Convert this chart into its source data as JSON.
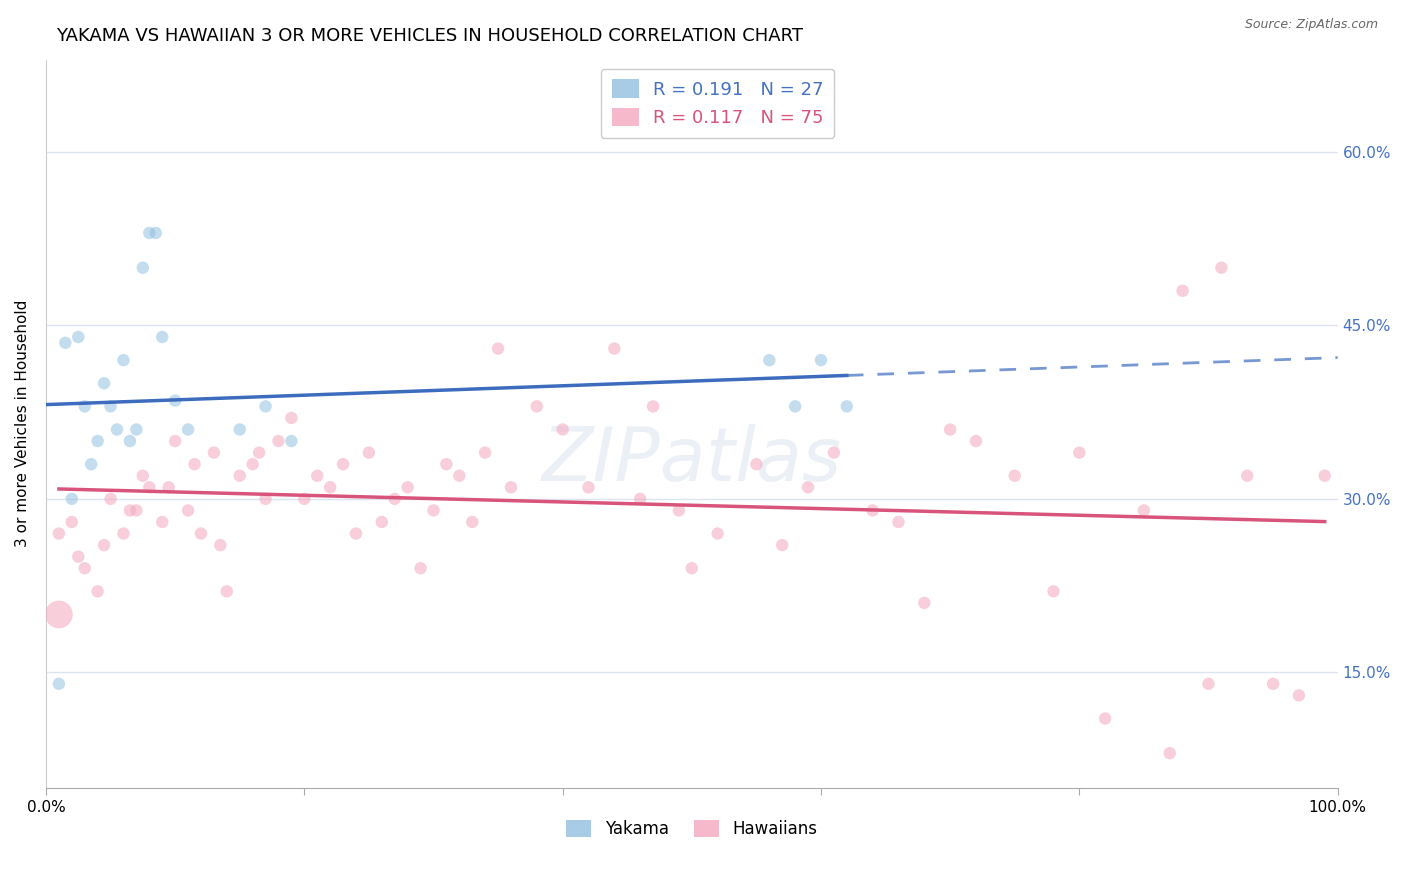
{
  "title": "YAKAMA VS HAWAIIAN 3 OR MORE VEHICLES IN HOUSEHOLD CORRELATION CHART",
  "source": "Source: ZipAtlas.com",
  "ylabel": "3 or more Vehicles in Household",
  "xlim": [
    0,
    100
  ],
  "ylim": [
    5,
    68
  ],
  "y_ticks": [
    15,
    30,
    45,
    60
  ],
  "yakama_color": "#92c0e0",
  "hawaiians_color": "#f4a6bf",
  "blue_line_color": "#3d6cbf",
  "pink_line_color": "#d9547a",
  "grid_color": "#dde4f0",
  "background_color": "#ffffff",
  "title_fontsize": 13,
  "axis_label_fontsize": 11,
  "tick_fontsize": 11,
  "watermark_text": "ZIPatlas",
  "watermark_color": "#c8d4e8",
  "watermark_alpha": 0.35,
  "yakama_x": [
    1.0,
    1.5,
    2.0,
    2.5,
    3.0,
    3.5,
    4.0,
    4.5,
    5.0,
    5.5,
    6.0,
    6.5,
    7.0,
    7.5,
    8.0,
    8.5,
    9.0,
    10.0,
    11.0,
    15.0,
    17.0,
    19.0,
    56.0,
    58.0,
    60.0,
    62.0
  ],
  "yakama_y": [
    14.0,
    43.5,
    30.0,
    44.0,
    38.0,
    33.0,
    35.0,
    40.0,
    38.0,
    36.0,
    42.0,
    35.0,
    36.0,
    50.0,
    53.0,
    53.0,
    44.0,
    38.5,
    36.0,
    36.0,
    38.0,
    35.0,
    42.0,
    38.0,
    42.0,
    38.0
  ],
  "hawaiians_x": [
    1.0,
    2.0,
    2.5,
    3.0,
    4.0,
    4.5,
    5.0,
    6.0,
    6.5,
    7.0,
    7.5,
    8.0,
    9.0,
    9.5,
    10.0,
    11.0,
    11.5,
    12.0,
    13.0,
    13.5,
    14.0,
    15.0,
    16.0,
    16.5,
    17.0,
    18.0,
    19.0,
    20.0,
    21.0,
    22.0,
    23.0,
    24.0,
    25.0,
    26.0,
    27.0,
    28.0,
    29.0,
    30.0,
    31.0,
    32.0,
    33.0,
    34.0,
    35.0,
    36.0,
    38.0,
    40.0,
    42.0,
    44.0,
    46.0,
    47.0,
    49.0,
    50.0,
    52.0,
    55.0,
    57.0,
    59.0,
    61.0,
    64.0,
    66.0,
    68.0,
    70.0,
    72.0,
    75.0,
    78.0,
    80.0,
    82.0,
    85.0,
    87.0,
    88.0,
    90.0,
    91.0,
    93.0,
    95.0,
    97.0,
    99.0
  ],
  "hawaiians_y": [
    27.0,
    28.0,
    25.0,
    24.0,
    22.0,
    26.0,
    30.0,
    27.0,
    29.0,
    29.0,
    32.0,
    31.0,
    28.0,
    31.0,
    35.0,
    29.0,
    33.0,
    27.0,
    34.0,
    26.0,
    22.0,
    32.0,
    33.0,
    34.0,
    30.0,
    35.0,
    37.0,
    30.0,
    32.0,
    31.0,
    33.0,
    27.0,
    34.0,
    28.0,
    30.0,
    31.0,
    24.0,
    29.0,
    33.0,
    32.0,
    28.0,
    34.0,
    43.0,
    31.0,
    38.0,
    36.0,
    31.0,
    43.0,
    30.0,
    38.0,
    29.0,
    24.0,
    27.0,
    33.0,
    26.0,
    31.0,
    34.0,
    29.0,
    28.0,
    21.0,
    36.0,
    35.0,
    32.0,
    22.0,
    34.0,
    11.0,
    29.0,
    8.0,
    48.0,
    14.0,
    50.0,
    32.0,
    14.0,
    13.0,
    32.0
  ],
  "large_pink_x": 1.0,
  "large_pink_y": 20.0,
  "large_pink_size": 400,
  "marker_size": 80,
  "marker_alpha": 0.55
}
